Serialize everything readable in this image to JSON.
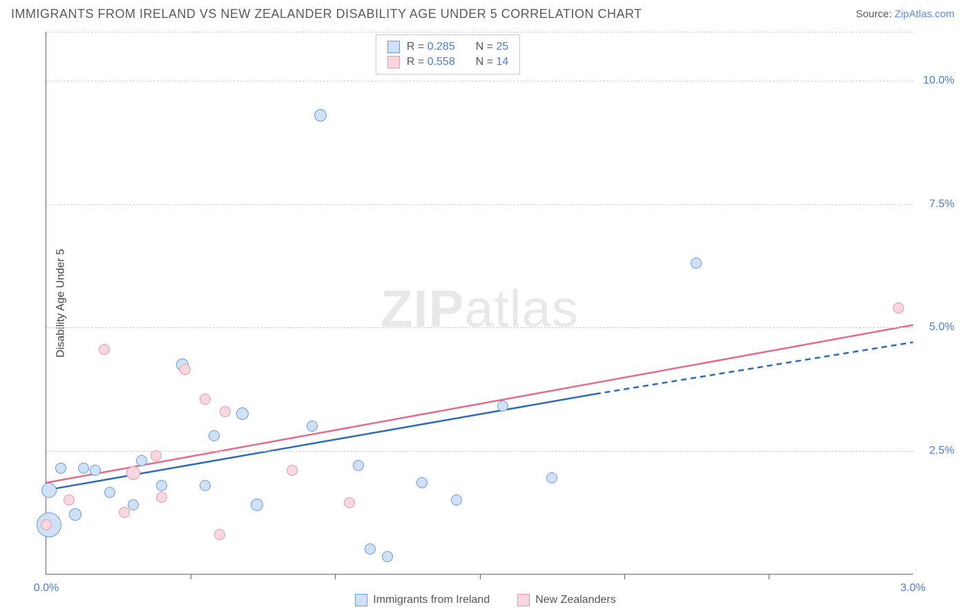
{
  "header": {
    "title": "IMMIGRANTS FROM IRELAND VS NEW ZEALANDER DISABILITY AGE UNDER 5 CORRELATION CHART",
    "source_prefix": "Source: ",
    "source_link": "ZipAtlas.com"
  },
  "chart": {
    "type": "scatter",
    "ylabel": "Disability Age Under 5",
    "xlim": [
      0.0,
      3.0
    ],
    "ylim": [
      0.0,
      11.0
    ],
    "yticks": [
      {
        "v": 2.5,
        "label": "2.5%"
      },
      {
        "v": 5.0,
        "label": "5.0%"
      },
      {
        "v": 7.5,
        "label": "7.5%"
      },
      {
        "v": 10.0,
        "label": "10.0%"
      }
    ],
    "xticks_minor": [
      0.5,
      1.0,
      1.5,
      2.0,
      2.5
    ],
    "xticks_labeled": [
      {
        "v": 0.0,
        "label": "0.0%"
      },
      {
        "v": 3.0,
        "label": "3.0%"
      }
    ],
    "grid_color": "#d0d0d0",
    "background_color": "#ffffff",
    "watermark": "ZIPatlas",
    "series": [
      {
        "name": "Immigrants from Ireland",
        "fill": "#cfe0f7",
        "stroke": "#6a9ad8",
        "line_color": "#2d6bb5",
        "R": "0.285",
        "N": "25",
        "trend": {
          "x1": 0.0,
          "y1": 1.7,
          "x2": 1.9,
          "y2": 3.65,
          "x3": 3.0,
          "y3": 4.7,
          "dash_after": 1.9
        },
        "points": [
          {
            "x": 0.01,
            "y": 1.7,
            "r": 11
          },
          {
            "x": 0.01,
            "y": 1.0,
            "r": 18
          },
          {
            "x": 0.05,
            "y": 2.15,
            "r": 8
          },
          {
            "x": 0.1,
            "y": 1.2,
            "r": 9
          },
          {
            "x": 0.13,
            "y": 2.15,
            "r": 8
          },
          {
            "x": 0.17,
            "y": 2.1,
            "r": 8
          },
          {
            "x": 0.22,
            "y": 1.65,
            "r": 8
          },
          {
            "x": 0.3,
            "y": 1.4,
            "r": 8
          },
          {
            "x": 0.33,
            "y": 2.3,
            "r": 8
          },
          {
            "x": 0.4,
            "y": 1.8,
            "r": 8
          },
          {
            "x": 0.47,
            "y": 4.25,
            "r": 9
          },
          {
            "x": 0.55,
            "y": 1.8,
            "r": 8
          },
          {
            "x": 0.58,
            "y": 2.8,
            "r": 8
          },
          {
            "x": 0.68,
            "y": 3.25,
            "r": 9
          },
          {
            "x": 0.73,
            "y": 1.4,
            "r": 9
          },
          {
            "x": 0.92,
            "y": 3.0,
            "r": 8
          },
          {
            "x": 0.95,
            "y": 9.3,
            "r": 9
          },
          {
            "x": 1.08,
            "y": 2.2,
            "r": 8
          },
          {
            "x": 1.12,
            "y": 0.5,
            "r": 8
          },
          {
            "x": 1.18,
            "y": 0.35,
            "r": 8
          },
          {
            "x": 1.3,
            "y": 1.85,
            "r": 8
          },
          {
            "x": 1.42,
            "y": 1.5,
            "r": 8
          },
          {
            "x": 1.58,
            "y": 3.4,
            "r": 8
          },
          {
            "x": 1.75,
            "y": 1.95,
            "r": 8
          },
          {
            "x": 2.25,
            "y": 6.3,
            "r": 8
          }
        ]
      },
      {
        "name": "New Zealanders",
        "fill": "#f8d7e0",
        "stroke": "#e199ad",
        "line_color": "#e56b8a",
        "R": "0.558",
        "N": "14",
        "trend": {
          "x1": 0.0,
          "y1": 1.85,
          "x2": 3.0,
          "y2": 5.05
        },
        "points": [
          {
            "x": 0.0,
            "y": 1.0,
            "r": 8
          },
          {
            "x": 0.08,
            "y": 1.5,
            "r": 8
          },
          {
            "x": 0.2,
            "y": 4.55,
            "r": 8
          },
          {
            "x": 0.27,
            "y": 1.25,
            "r": 8
          },
          {
            "x": 0.3,
            "y": 2.05,
            "r": 10
          },
          {
            "x": 0.38,
            "y": 2.4,
            "r": 8
          },
          {
            "x": 0.4,
            "y": 1.55,
            "r": 8
          },
          {
            "x": 0.48,
            "y": 4.15,
            "r": 8
          },
          {
            "x": 0.55,
            "y": 3.55,
            "r": 8
          },
          {
            "x": 0.6,
            "y": 0.8,
            "r": 8
          },
          {
            "x": 0.62,
            "y": 3.3,
            "r": 8
          },
          {
            "x": 0.85,
            "y": 2.1,
            "r": 8
          },
          {
            "x": 1.05,
            "y": 1.45,
            "r": 8
          },
          {
            "x": 2.95,
            "y": 5.4,
            "r": 8
          }
        ]
      }
    ]
  },
  "legend": {
    "item1": "Immigrants from Ireland",
    "item2": "New Zealanders"
  }
}
